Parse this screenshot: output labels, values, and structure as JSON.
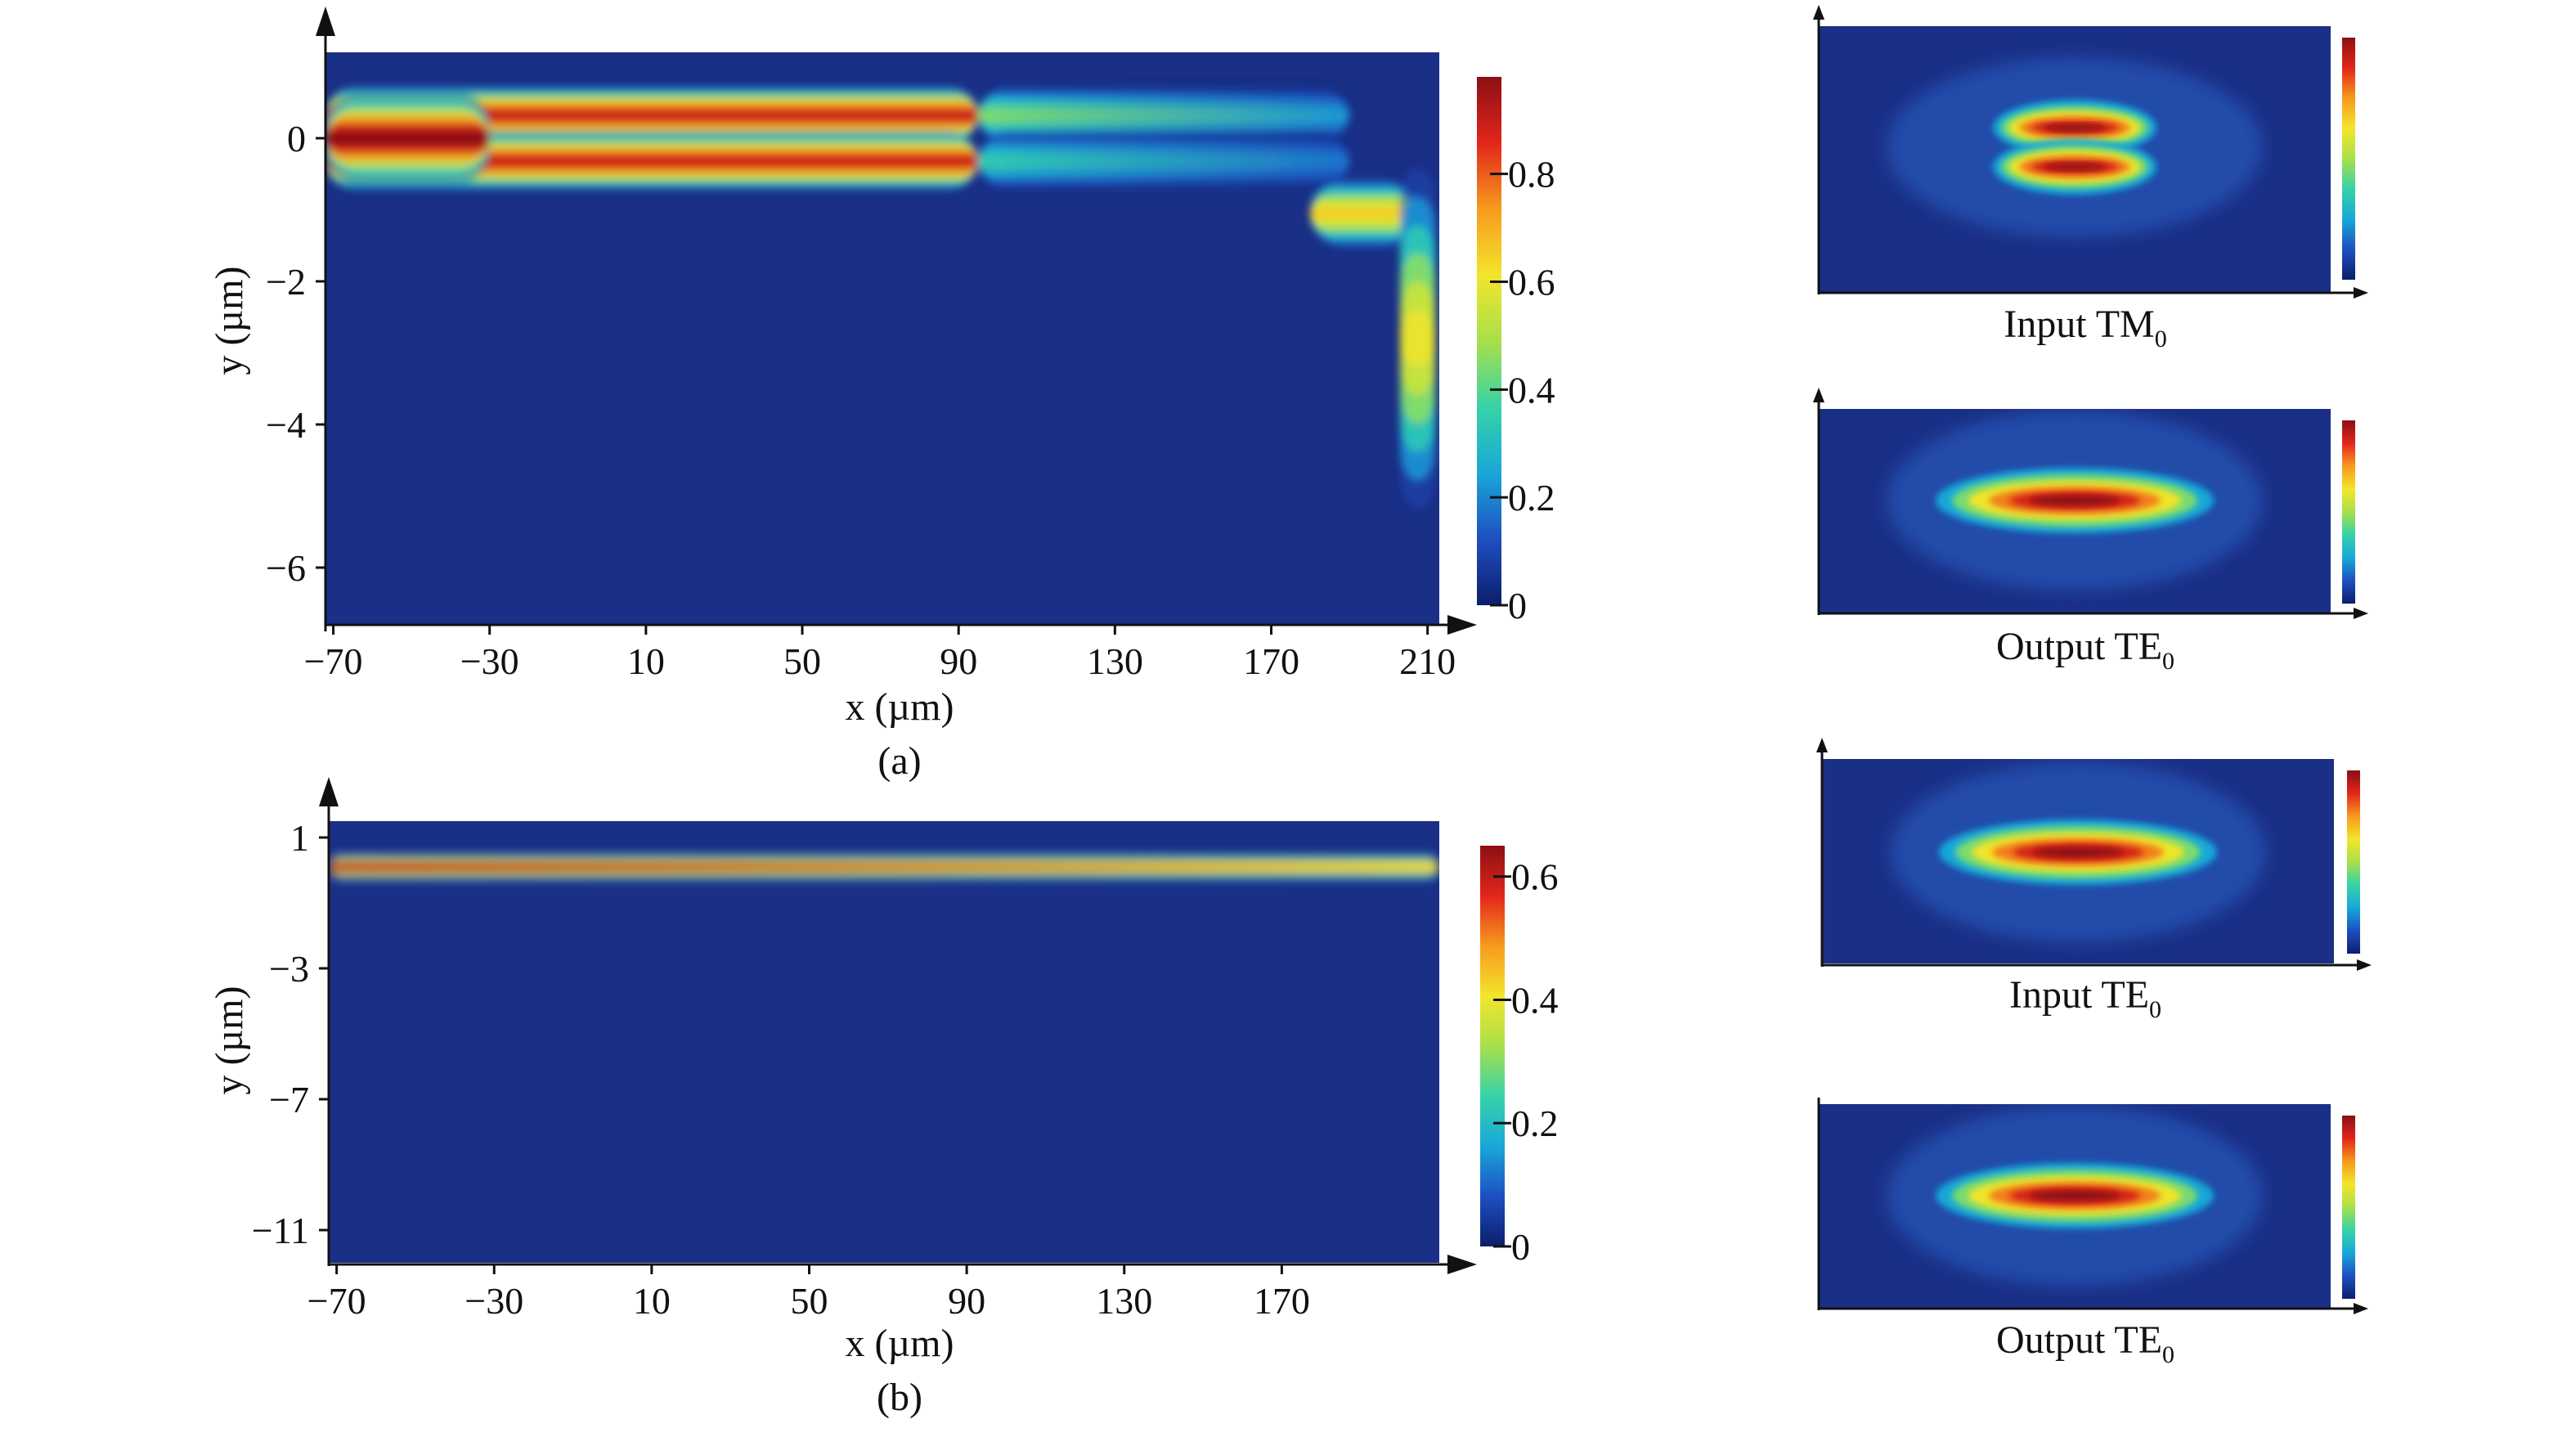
{
  "chart_data": [
    {
      "id": "a",
      "type": "heatmap",
      "caption": "(a)",
      "xlabel": "x (µm)",
      "ylabel": "y (µm)",
      "x_ticks": [
        "−70",
        "−30",
        "10",
        "50",
        "90",
        "130",
        "170",
        "210"
      ],
      "x_tick_values": [
        -70,
        -30,
        10,
        50,
        90,
        130,
        170,
        210
      ],
      "y_ticks": [
        "0",
        "−2",
        "−4",
        "−6"
      ],
      "y_tick_values": [
        0,
        -2,
        -4,
        -6
      ],
      "xlim": [
        -72,
        213
      ],
      "ylim": [
        -6.8,
        1.2
      ],
      "colorbar": {
        "ticks": [
          "0",
          "0.2",
          "0.4",
          "0.6",
          "0.8"
        ],
        "tick_values": [
          0,
          0.2,
          0.4,
          0.6,
          0.8
        ],
        "range": [
          0,
          0.98
        ]
      },
      "field_features": [
        {
          "kind": "lobe",
          "x_start": -72,
          "x_end": 95,
          "y_center": 0.32,
          "y_halfwidth": 0.3,
          "peak": 0.9
        },
        {
          "kind": "lobe",
          "x_start": -72,
          "x_end": 95,
          "y_center": -0.32,
          "y_halfwidth": 0.3,
          "peak": 0.9
        },
        {
          "kind": "core",
          "x_start": -72,
          "x_end": -30,
          "y_center": 0.0,
          "y_halfwidth": 0.45,
          "peak": 0.98
        },
        {
          "kind": "fading-lobe",
          "x_start": 95,
          "x_end": 190,
          "y_center": 0.32,
          "y_halfwidth": 0.3,
          "peak": 0.45
        },
        {
          "kind": "fading-lobe",
          "x_start": 95,
          "x_end": 190,
          "y_center": -0.32,
          "y_halfwidth": 0.3,
          "peak": 0.35
        },
        {
          "kind": "coupled-spot",
          "x_start": 180,
          "x_end": 207,
          "y_center": -1.05,
          "y_halfwidth": 0.35,
          "peak": 0.65
        },
        {
          "kind": "edge-beam",
          "x_start": 203,
          "x_end": 212,
          "y_center": -2.8,
          "y_halfwidth": 1.7,
          "peak": 0.6
        }
      ]
    },
    {
      "id": "b",
      "type": "heatmap",
      "caption": "(b)",
      "xlabel": "x (µm)",
      "ylabel": "y (µm)",
      "x_ticks": [
        "−70",
        "−30",
        "10",
        "50",
        "90",
        "130",
        "170"
      ],
      "x_tick_values": [
        -70,
        -30,
        10,
        50,
        90,
        130,
        170
      ],
      "y_ticks": [
        "1",
        "−3",
        "−7",
        "−11"
      ],
      "y_tick_values": [
        1,
        -3,
        -7,
        -11
      ],
      "xlim": [
        -72,
        210
      ],
      "ylim": [
        -12.0,
        1.5
      ],
      "colorbar": {
        "ticks": [
          "0",
          "0.2",
          "0.4",
          "0.6"
        ],
        "tick_values": [
          0,
          0.2,
          0.4,
          0.6
        ],
        "range": [
          0,
          0.65
        ]
      },
      "field_features": [
        {
          "kind": "beam",
          "x_start": -72,
          "x_end": 210,
          "y_center": 0.1,
          "y_halfwidth": 0.3,
          "peak_start": 0.65,
          "peak_end": 0.45
        }
      ]
    }
  ],
  "mode_panels": [
    {
      "caption_main": "Input TM",
      "caption_sub": "0",
      "pattern": "two-lobe"
    },
    {
      "caption_main": "Output TE",
      "caption_sub": "0",
      "pattern": "single-lobe"
    },
    {
      "caption_main": "Input TE",
      "caption_sub": "0",
      "pattern": "single-lobe"
    },
    {
      "caption_main": "Output TE",
      "caption_sub": "0",
      "pattern": "single-lobe"
    }
  ],
  "colormap": [
    "#0b1e6b",
    "#1e4fc1",
    "#19a7d8",
    "#36d3a8",
    "#a8e04a",
    "#f3e52a",
    "#f79a1e",
    "#e2261a",
    "#8b0f14"
  ]
}
